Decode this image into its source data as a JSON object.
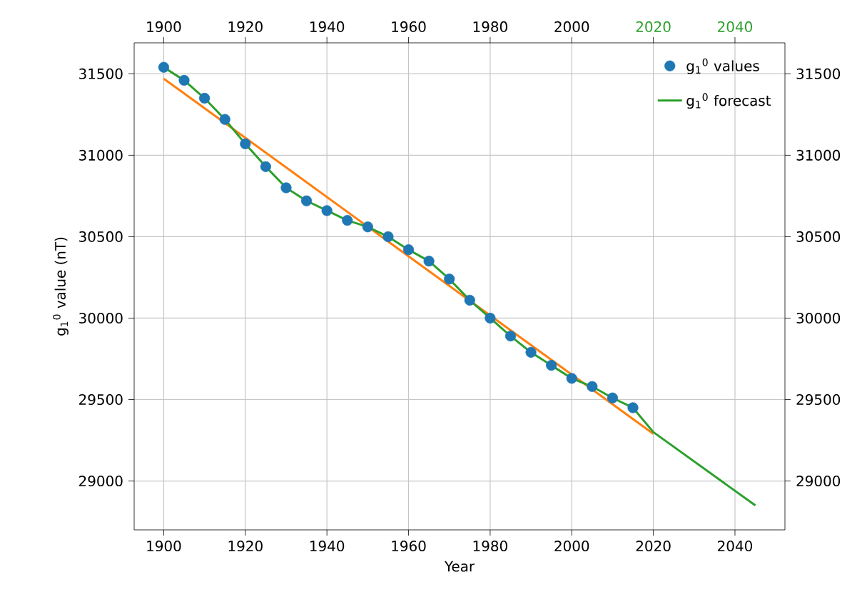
{
  "chart_data": {
    "type": "scatter",
    "xlabel": "Year",
    "ylabel": "g$_{1}$$^{0}$ value (nT)",
    "xlim": [
      1892.75,
      2052.25
    ],
    "ylim": [
      28700,
      31690
    ],
    "xticks": [
      1900,
      1920,
      1940,
      1960,
      1980,
      2000,
      2020,
      2040
    ],
    "yticks": [
      29000,
      29500,
      30000,
      30500,
      31000,
      31500
    ],
    "x2lim": [
      1892.75,
      2052.25
    ],
    "x2ticks": [
      1900,
      1920,
      1940,
      1960,
      1980,
      2000,
      2020,
      2040
    ],
    "y2lim": [
      28700,
      31690
    ],
    "y2ticks": [
      29000,
      29500,
      30000,
      30500,
      31000,
      31500
    ],
    "grid": true,
    "legend": "top right",
    "series": [
      {
        "type": "line",
        "color": "#ff7f0e",
        "x": [
          1900,
          2020
        ],
        "values": [
          31470,
          29290
        ]
      },
      {
        "name": "g$_{1}$$^{0}$ values",
        "color": "#1f77b4",
        "x": [
          1900,
          1905,
          1910,
          1915,
          1920,
          1925,
          1930,
          1935,
          1940,
          1945,
          1950,
          1955,
          1960,
          1965,
          1970,
          1975,
          1980,
          1985,
          1990,
          1995,
          2000,
          2005,
          2010,
          2015
        ],
        "values": [
          31540,
          31460,
          31350,
          31220,
          31070,
          30930,
          30800,
          30720,
          30660,
          30600,
          30560,
          30500,
          30420,
          30350,
          30240,
          30110,
          30000,
          29890,
          29790,
          29710,
          29630,
          29580,
          29510,
          29450
        ]
      },
      {
        "type": "line",
        "name": "g$_{1}$$^{0}$ forecast",
        "color": "#2ca02c",
        "x": [
          1900,
          1905,
          1910,
          1915,
          1920,
          1925,
          1930,
          1935,
          1940,
          1945,
          1950,
          1955,
          1960,
          1965,
          1970,
          1975,
          1980,
          1985,
          1990,
          1995,
          2000,
          2005,
          2010,
          2015,
          2020,
          2045
        ],
        "values": [
          31540,
          31460,
          31350,
          31220,
          31070,
          30930,
          30800,
          30720,
          30660,
          30600,
          30560,
          30500,
          30420,
          30350,
          30240,
          30110,
          30000,
          29890,
          29790,
          29710,
          29630,
          29580,
          29510,
          29450,
          29300,
          28850
        ]
      }
    ]
  }
}
